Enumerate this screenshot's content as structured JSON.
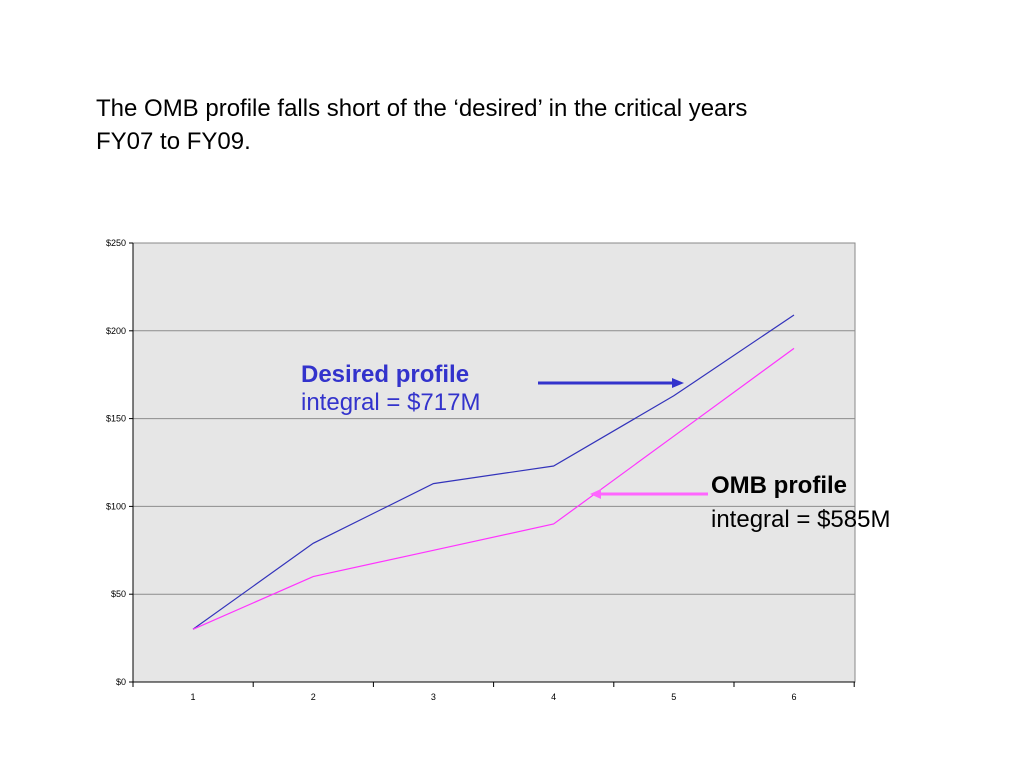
{
  "slide": {
    "title_line1": "The OMB profile falls short of the ‘desired’ in the critical years",
    "title_line2": "FY07 to FY09."
  },
  "chart_data": {
    "type": "line",
    "x": [
      1,
      2,
      3,
      4,
      5,
      6
    ],
    "x_tick_labels": [
      "1",
      "2",
      "3",
      "4",
      "5",
      "6"
    ],
    "y_tick_labels": [
      "$0",
      "$50",
      "$100",
      "$150",
      "$200",
      "$250"
    ],
    "ylim": [
      0,
      250
    ],
    "y_ticks": [
      0,
      50,
      100,
      150,
      200,
      250
    ],
    "grid": true,
    "plot_background": "#e6e6e6",
    "series": [
      {
        "key": "desired",
        "values": [
          30,
          79,
          113,
          123,
          163,
          209
        ],
        "color": "#3333bb"
      },
      {
        "key": "omb",
        "values": [
          30,
          60,
          75,
          90,
          140,
          190
        ],
        "color": "#ff33ff"
      }
    ],
    "annotations": {
      "desired": {
        "title": "Desired profile",
        "subtitle": "integral = $717M",
        "color": "#3333cc",
        "arrow_color": "#3333cc"
      },
      "omb": {
        "title": "OMB profile",
        "subtitle": "integral = $585M",
        "color": "#000000",
        "arrow_color": "#ff66ff"
      }
    }
  }
}
